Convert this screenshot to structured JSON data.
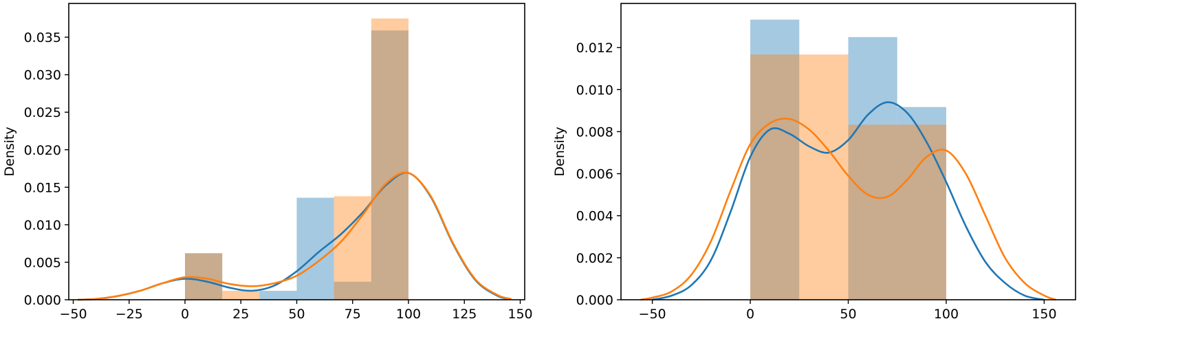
{
  "chart_data": [
    {
      "type": "histogram+kde",
      "ylabel": "Density",
      "xlabel": "",
      "xlim": [
        -52,
        152
      ],
      "ylim": [
        0,
        0.0395
      ],
      "xticks": [
        -50,
        -25,
        0,
        25,
        50,
        75,
        100,
        125,
        150
      ],
      "xtick_labels": [
        "−50",
        "−25",
        "0",
        "25",
        "50",
        "75",
        "100",
        "125",
        "150"
      ],
      "yticks": [
        0.0,
        0.005,
        0.01,
        0.015,
        0.02,
        0.025,
        0.03,
        0.035
      ],
      "ytick_labels": [
        "0.000",
        "0.005",
        "0.010",
        "0.015",
        "0.020",
        "0.025",
        "0.030",
        "0.035"
      ],
      "grid": false,
      "legend": "none",
      "series": [
        {
          "color": "#1f77b4",
          "bins": [
            {
              "x0": 0,
              "x1": 16.67,
              "density": 0.0062
            },
            {
              "x0": 16.67,
              "x1": 33.33,
              "density": 0.0
            },
            {
              "x0": 33.33,
              "x1": 50,
              "density": 0.0012
            },
            {
              "x0": 50,
              "x1": 66.67,
              "density": 0.0136
            },
            {
              "x0": 66.67,
              "x1": 83.33,
              "density": 0.0024
            },
            {
              "x0": 83.33,
              "x1": 100,
              "density": 0.0359
            }
          ],
          "kde": [
            [
              -48,
              0.0
            ],
            [
              -40,
              0.0001
            ],
            [
              -30,
              0.0005
            ],
            [
              -20,
              0.0012
            ],
            [
              -10,
              0.0022
            ],
            [
              0,
              0.0028
            ],
            [
              10,
              0.0024
            ],
            [
              20,
              0.0016
            ],
            [
              30,
              0.0012
            ],
            [
              40,
              0.0019
            ],
            [
              50,
              0.0038
            ],
            [
              60,
              0.0064
            ],
            [
              70,
              0.0088
            ],
            [
              80,
              0.0118
            ],
            [
              90,
              0.0153
            ],
            [
              100,
              0.0169
            ],
            [
              110,
              0.0137
            ],
            [
              120,
              0.0074
            ],
            [
              130,
              0.0026
            ],
            [
              140,
              0.0005
            ],
            [
              146,
              0.0001
            ]
          ]
        },
        {
          "color": "#ff7f0e",
          "bins": [
            {
              "x0": 0,
              "x1": 16.67,
              "density": 0.0062
            },
            {
              "x0": 16.67,
              "x1": 33.33,
              "density": 0.0012
            },
            {
              "x0": 33.33,
              "x1": 50,
              "density": 0.0
            },
            {
              "x0": 50,
              "x1": 66.67,
              "density": 0.0
            },
            {
              "x0": 66.67,
              "x1": 83.33,
              "density": 0.0138
            },
            {
              "x0": 83.33,
              "x1": 100,
              "density": 0.0375
            }
          ],
          "kde": [
            [
              -48,
              0.0
            ],
            [
              -40,
              0.0001
            ],
            [
              -30,
              0.0005
            ],
            [
              -20,
              0.0012
            ],
            [
              -10,
              0.0022
            ],
            [
              0,
              0.003
            ],
            [
              10,
              0.0028
            ],
            [
              20,
              0.0021
            ],
            [
              30,
              0.0018
            ],
            [
              40,
              0.0022
            ],
            [
              50,
              0.0032
            ],
            [
              60,
              0.0052
            ],
            [
              70,
              0.0078
            ],
            [
              80,
              0.0115
            ],
            [
              90,
              0.0155
            ],
            [
              100,
              0.0169
            ],
            [
              110,
              0.0138
            ],
            [
              120,
              0.0075
            ],
            [
              130,
              0.0027
            ],
            [
              140,
              0.0006
            ],
            [
              146,
              0.0001
            ]
          ]
        }
      ]
    },
    {
      "type": "histogram+kde",
      "ylabel": "Density",
      "xlabel": "",
      "xlim": [
        -66,
        166
      ],
      "ylim": [
        0,
        0.0141
      ],
      "xticks": [
        -50,
        0,
        50,
        100,
        150
      ],
      "xtick_labels": [
        "−50",
        "0",
        "50",
        "100",
        "150"
      ],
      "yticks": [
        0.0,
        0.002,
        0.004,
        0.006,
        0.008,
        0.01,
        0.012
      ],
      "ytick_labels": [
        "0.000",
        "0.002",
        "0.004",
        "0.006",
        "0.008",
        "0.010",
        "0.012"
      ],
      "grid": false,
      "legend": "none",
      "series": [
        {
          "color": "#1f77b4",
          "bins": [
            {
              "x0": 0,
              "x1": 25,
              "density": 0.01333
            },
            {
              "x0": 25,
              "x1": 50,
              "density": 0.0
            },
            {
              "x0": 50,
              "x1": 75,
              "density": 0.0125
            },
            {
              "x0": 75,
              "x1": 100,
              "density": 0.00917
            }
          ],
          "kde": [
            [
              -50,
              0.0
            ],
            [
              -40,
              0.0002
            ],
            [
              -30,
              0.0007
            ],
            [
              -20,
              0.0019
            ],
            [
              -10,
              0.0042
            ],
            [
              0,
              0.0068
            ],
            [
              10,
              0.0081
            ],
            [
              20,
              0.0079
            ],
            [
              30,
              0.0073
            ],
            [
              40,
              0.007
            ],
            [
              50,
              0.0076
            ],
            [
              60,
              0.0088
            ],
            [
              70,
              0.0094
            ],
            [
              80,
              0.0089
            ],
            [
              90,
              0.0075
            ],
            [
              100,
              0.0056
            ],
            [
              110,
              0.0035
            ],
            [
              120,
              0.0018
            ],
            [
              130,
              0.0008
            ],
            [
              140,
              0.0002
            ],
            [
              150,
              0.0
            ]
          ]
        },
        {
          "color": "#ff7f0e",
          "bins": [
            {
              "x0": 0,
              "x1": 25,
              "density": 0.01167
            },
            {
              "x0": 25,
              "x1": 50,
              "density": 0.01167
            },
            {
              "x0": 50,
              "x1": 75,
              "density": 0.00833
            },
            {
              "x0": 75,
              "x1": 100,
              "density": 0.00833
            }
          ],
          "kde": [
            [
              -56,
              0.0
            ],
            [
              -50,
              0.0001
            ],
            [
              -40,
              0.0004
            ],
            [
              -30,
              0.0012
            ],
            [
              -20,
              0.0028
            ],
            [
              -10,
              0.0052
            ],
            [
              0,
              0.0074
            ],
            [
              10,
              0.0084
            ],
            [
              20,
              0.0086
            ],
            [
              30,
              0.0081
            ],
            [
              40,
              0.0071
            ],
            [
              50,
              0.0059
            ],
            [
              60,
              0.005
            ],
            [
              70,
              0.0049
            ],
            [
              80,
              0.0057
            ],
            [
              90,
              0.0068
            ],
            [
              100,
              0.0071
            ],
            [
              110,
              0.006
            ],
            [
              120,
              0.004
            ],
            [
              130,
              0.002
            ],
            [
              140,
              0.0008
            ],
            [
              150,
              0.0002
            ],
            [
              156,
              0.0
            ]
          ]
        }
      ]
    }
  ]
}
